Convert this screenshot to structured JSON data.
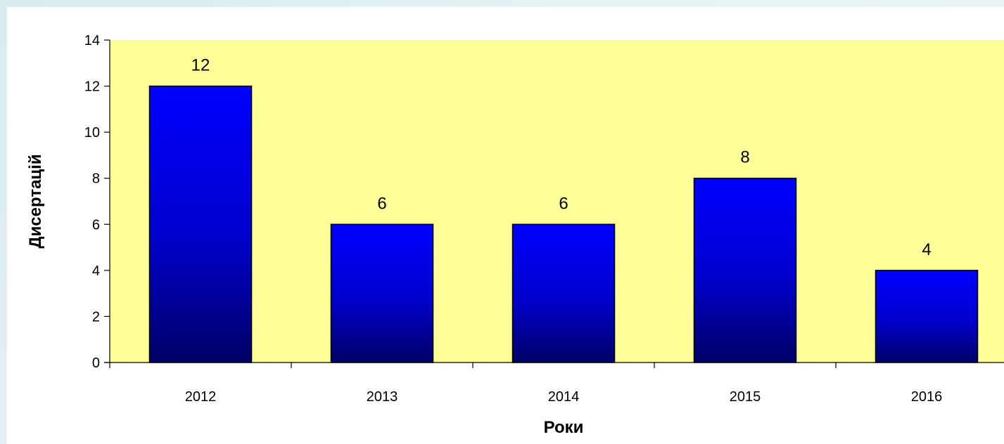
{
  "chart_data": {
    "type": "bar",
    "categories": [
      "2012",
      "2013",
      "2014",
      "2015",
      "2016"
    ],
    "values": [
      12,
      6,
      6,
      8,
      4
    ],
    "data_labels": [
      "12",
      "6",
      "6",
      "8",
      "4"
    ],
    "title": "",
    "xlabel": "Роки",
    "ylabel": "Дисертацій",
    "ylim": [
      0,
      14
    ],
    "yticks": [
      0,
      2,
      4,
      6,
      8,
      10,
      12,
      14
    ],
    "ytick_labels": [
      "0",
      "2",
      "4",
      "6",
      "8",
      "10",
      "12",
      "14"
    ],
    "grid": false,
    "legend": "none",
    "colors": {
      "plot_background": "#ffff99",
      "bar_top": "#0000ff",
      "bar_bottom": "#000066",
      "bar_outline": "#000000"
    }
  }
}
